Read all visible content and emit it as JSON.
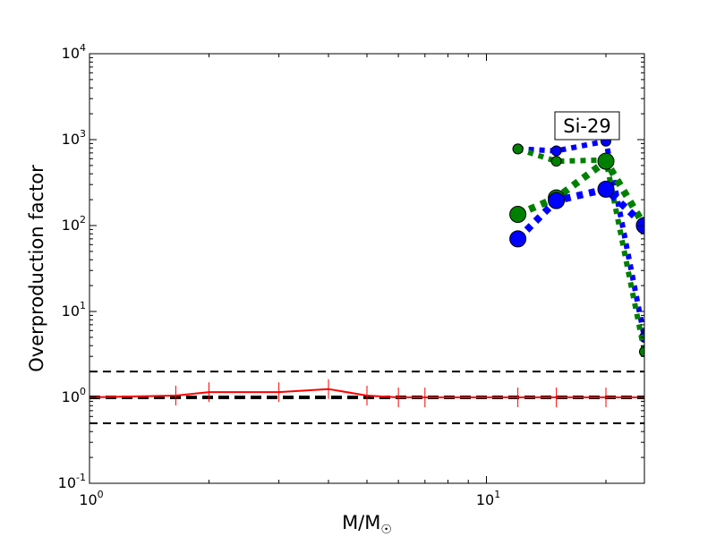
{
  "chart_data": {
    "type": "scatter",
    "title": "",
    "xlabel": "M/M",
    "xlabel_symbol": "☉",
    "ylabel": "Overproduction factor",
    "xscale": "log",
    "yscale": "log",
    "xlim": [
      1,
      25
    ],
    "ylim": [
      0.1,
      10000
    ],
    "x_ticks": [
      {
        "value": 1,
        "base": "10",
        "exp": "0"
      },
      {
        "value": 10,
        "base": "10",
        "exp": "1"
      }
    ],
    "y_ticks": [
      {
        "value": 0.1,
        "base": "10",
        "exp": "-1"
      },
      {
        "value": 1,
        "base": "10",
        "exp": "0"
      },
      {
        "value": 10,
        "base": "10",
        "exp": "1"
      },
      {
        "value": 100,
        "base": "10",
        "exp": "2"
      },
      {
        "value": 1000,
        "base": "10",
        "exp": "3"
      },
      {
        "value": 10000,
        "base": "10",
        "exp": "4"
      }
    ],
    "reference_lines": [
      {
        "y": 2,
        "style": "dashed",
        "color": "#000000"
      },
      {
        "y": 1,
        "style": "dashed-thick",
        "color": "#000000"
      },
      {
        "y": 0.5,
        "style": "dashed",
        "color": "#000000"
      }
    ],
    "annotation": {
      "text": "Si-29"
    },
    "series": [
      {
        "color": "#ff0000",
        "style": "solid",
        "marker": "vline",
        "x": [
          1,
          1.65,
          2,
          3,
          4,
          5,
          6,
          7,
          12,
          15,
          20,
          25
        ],
        "y": [
          1.0,
          1.05,
          1.15,
          1.15,
          1.25,
          1.05,
          1.0,
          1.0,
          1.0,
          1.0,
          1.0,
          1.0
        ]
      },
      {
        "color": "#0000ff",
        "style": "dotted",
        "marker": "circle-small",
        "x": [
          12,
          15,
          20,
          25
        ],
        "y": [
          780,
          740,
          960,
          5
        ]
      },
      {
        "color": "#008000",
        "style": "dotted",
        "marker": "circle-small",
        "x": [
          12,
          15,
          20,
          25
        ],
        "y": [
          780,
          560,
          580,
          3.4
        ]
      },
      {
        "color": "#008000",
        "style": "dotted",
        "marker": "circle-large",
        "x": [
          12,
          15,
          20,
          25
        ],
        "y": [
          135,
          210,
          560,
          100
        ]
      },
      {
        "color": "#0000ff",
        "style": "dotted",
        "marker": "circle-large",
        "x": [
          12,
          15,
          20,
          25
        ],
        "y": [
          70,
          195,
          265,
          100
        ]
      }
    ]
  }
}
